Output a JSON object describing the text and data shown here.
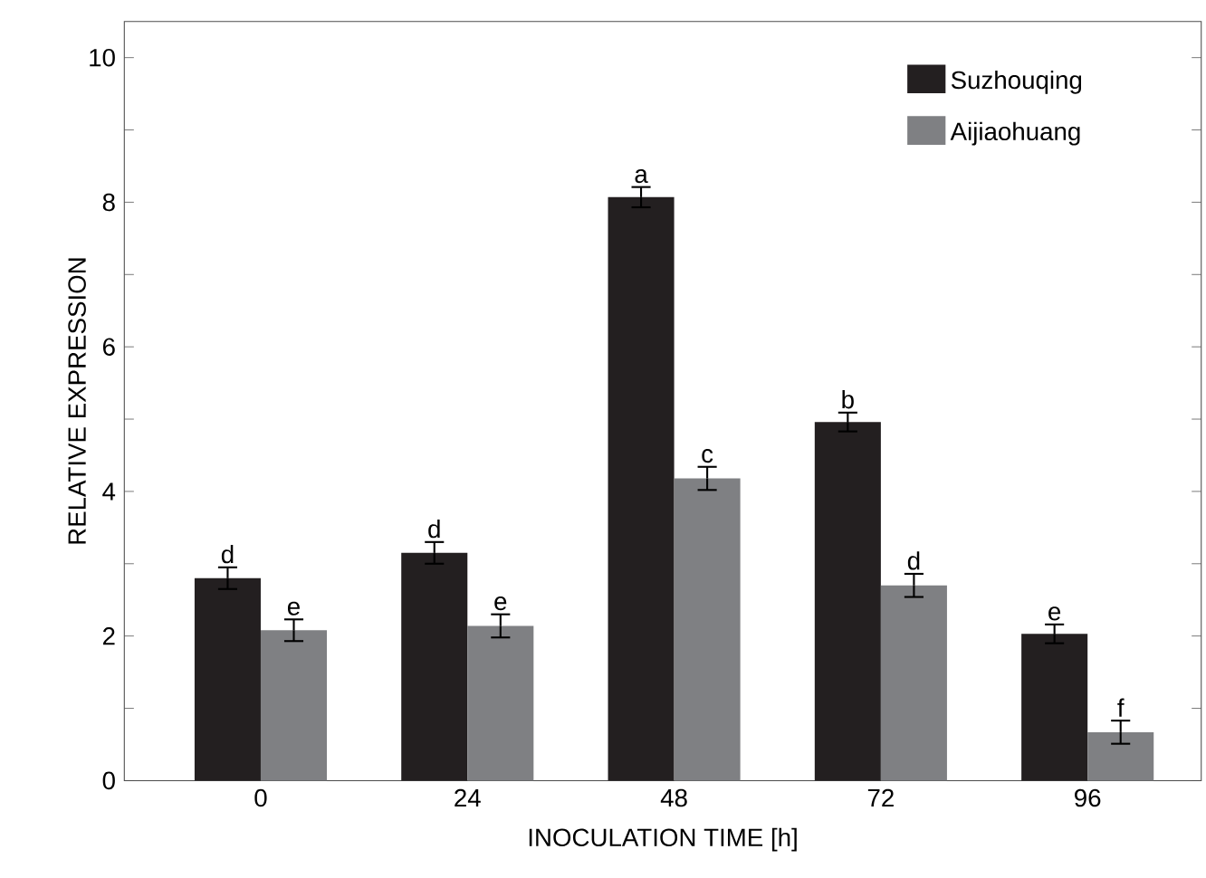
{
  "chart_data": {
    "type": "bar",
    "xlabel": "INOCULATION TIME [h]",
    "ylabel": "RELATIVE EXPRESSION",
    "categories": [
      "0",
      "24",
      "48",
      "72",
      "96"
    ],
    "series": [
      {
        "name": "Suzhouqing",
        "color": "#231f20",
        "values": [
          2.8,
          3.15,
          8.07,
          4.96,
          2.03
        ],
        "errors": [
          0.15,
          0.15,
          0.14,
          0.13,
          0.13
        ]
      },
      {
        "name": "Aijiaohuang",
        "color": "#7f8083",
        "values": [
          2.08,
          2.14,
          4.18,
          2.7,
          0.67
        ],
        "errors": [
          0.15,
          0.16,
          0.16,
          0.16,
          0.16
        ]
      }
    ],
    "ylim": [
      0,
      10.5
    ],
    "yticks": [
      0,
      {
        "value": 1,
        "label": null
      },
      2,
      {
        "value": 3,
        "label": null
      },
      4,
      {
        "value": 5,
        "label": null
      },
      6,
      {
        "value": 7,
        "label": null
      },
      8,
      {
        "value": 9,
        "label": null
      },
      10
    ],
    "legend": "top right",
    "annotations": [
      {
        "text": "d",
        "x": "0",
        "y": 2.8
      },
      {
        "text": "e",
        "x": "0",
        "y": 2.08
      },
      {
        "text": "d",
        "x": "24",
        "y": 3.15
      },
      {
        "text": "e",
        "x": "24",
        "y": 2.14
      },
      {
        "text": "a",
        "x": "48",
        "y": 8.07
      },
      {
        "text": "c",
        "x": "48",
        "y": 4.18
      },
      {
        "text": "b",
        "x": "72",
        "y": 4.96
      },
      {
        "text": "d",
        "x": "72",
        "y": 2.7
      },
      {
        "text": "e",
        "x": "96",
        "y": 2.03
      },
      {
        "text": "f",
        "x": "96",
        "y": 0.67
      }
    ]
  }
}
